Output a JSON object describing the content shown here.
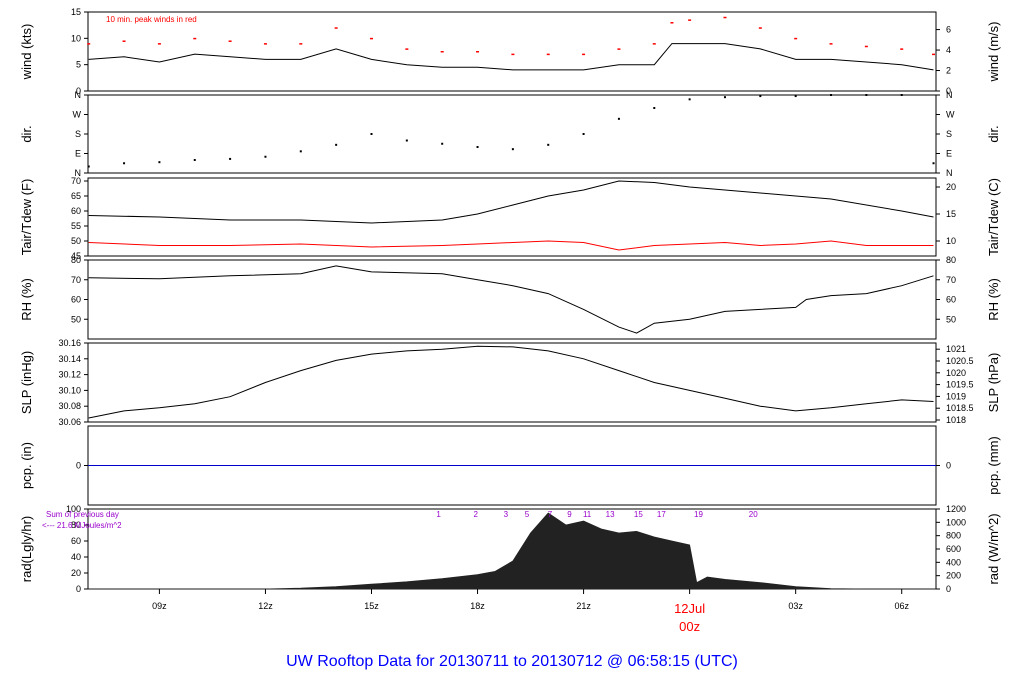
{
  "colors": {
    "line": "#000000",
    "red": "#ff0000",
    "blue": "#0000cc",
    "purple": "#9900cc",
    "title": "#0000ff"
  },
  "title": "UW Rooftop Data for 20130711  to  20130712 @ 06:58:15  (UTC)",
  "chart_data": {
    "type": "line",
    "x_axis": {
      "range_hours": [
        6.98,
        30.97
      ],
      "ticks": [
        {
          "label": "09z",
          "hour": 9
        },
        {
          "label": "12z",
          "hour": 12
        },
        {
          "label": "15z",
          "hour": 15
        },
        {
          "label": "18z",
          "hour": 18
        },
        {
          "label": "21z",
          "hour": 21
        },
        {
          "label": "00z",
          "hour": 24,
          "date_label": "12Jul"
        },
        {
          "label": "03z",
          "hour": 27
        },
        {
          "label": "06z",
          "hour": 30
        }
      ]
    },
    "panels": [
      {
        "id": "wind",
        "ylabel_left": "wind (kts)",
        "ylabel_right": "wind (m/s)",
        "ylim": [
          0,
          15
        ],
        "left_ticks": [
          "0",
          "5",
          "10",
          "15"
        ],
        "right_ticks": [
          "0",
          "2",
          "4",
          "6"
        ],
        "annotation": "10 min. peak winds in red",
        "series": [
          {
            "name": "wind speed",
            "color": "#000000",
            "points": [
              [
                7,
                6
              ],
              [
                8,
                6.5
              ],
              [
                9,
                5.5
              ],
              [
                10,
                7
              ],
              [
                11,
                6.5
              ],
              [
                12,
                6
              ],
              [
                13,
                6
              ],
              [
                14,
                8
              ],
              [
                15,
                6
              ],
              [
                16,
                5
              ],
              [
                17,
                4.5
              ],
              [
                18,
                4.5
              ],
              [
                19,
                4
              ],
              [
                20,
                4
              ],
              [
                21,
                4
              ],
              [
                22,
                5
              ],
              [
                23,
                5
              ],
              [
                23.5,
                9
              ],
              [
                24,
                9
              ],
              [
                25,
                9
              ],
              [
                26,
                8
              ],
              [
                27,
                6
              ],
              [
                28,
                6
              ],
              [
                29,
                5.5
              ],
              [
                30,
                5
              ],
              [
                30.9,
                4
              ]
            ]
          },
          {
            "name": "10 min. peak winds",
            "color": "#ff0000",
            "points": [
              [
                7,
                9
              ],
              [
                8,
                9.5
              ],
              [
                9,
                9
              ],
              [
                10,
                10
              ],
              [
                11,
                9.5
              ],
              [
                12,
                9
              ],
              [
                13,
                9
              ],
              [
                14,
                12
              ],
              [
                15,
                10
              ],
              [
                16,
                8
              ],
              [
                17,
                7.5
              ],
              [
                18,
                7.5
              ],
              [
                19,
                7
              ],
              [
                20,
                7
              ],
              [
                21,
                7
              ],
              [
                22,
                8
              ],
              [
                23,
                9
              ],
              [
                23.5,
                13
              ],
              [
                24,
                13.5
              ],
              [
                25,
                14
              ],
              [
                26,
                12
              ],
              [
                27,
                10
              ],
              [
                28,
                9
              ],
              [
                29,
                8.5
              ],
              [
                30,
                8
              ],
              [
                30.9,
                7
              ]
            ]
          }
        ]
      },
      {
        "id": "dir",
        "ylabel_left": "dir.",
        "ylabel_right": "dir.",
        "ylim": [
          0,
          360
        ],
        "left_ticks": [
          "N",
          "E",
          "S",
          "W",
          "N"
        ],
        "right_ticks": [
          "N",
          "E",
          "S",
          "W",
          "N"
        ],
        "series": [
          {
            "name": "wind direction",
            "color": "#000000",
            "points": [
              [
                7,
                30
              ],
              [
                8,
                45
              ],
              [
                9,
                50
              ],
              [
                10,
                60
              ],
              [
                11,
                65
              ],
              [
                12,
                75
              ],
              [
                13,
                100
              ],
              [
                14,
                130
              ],
              [
                15,
                180
              ],
              [
                16,
                150
              ],
              [
                17,
                135
              ],
              [
                18,
                120
              ],
              [
                19,
                110
              ],
              [
                20,
                130
              ],
              [
                21,
                180
              ],
              [
                22,
                250
              ],
              [
                23,
                300
              ],
              [
                24,
                340
              ],
              [
                25,
                350
              ],
              [
                26,
                355
              ],
              [
                27,
                355
              ],
              [
                28,
                360
              ],
              [
                29,
                360
              ],
              [
                30,
                360
              ],
              [
                30.9,
                45
              ]
            ]
          }
        ]
      },
      {
        "id": "temp",
        "ylabel_left": "Tair/Tdew (F)",
        "ylabel_right": "Tair/Tdew (C)",
        "ylim": [
          45,
          71
        ],
        "left_ticks": [
          "45",
          "50",
          "55",
          "60",
          "65",
          "70"
        ],
        "right_ticks": [
          "10",
          "15",
          "20"
        ],
        "series": [
          {
            "name": "Tair",
            "color": "#000000",
            "points": [
              [
                7,
                58.5
              ],
              [
                9,
                58
              ],
              [
                11,
                57
              ],
              [
                13,
                57
              ],
              [
                15,
                56
              ],
              [
                17,
                57
              ],
              [
                18,
                59
              ],
              [
                19,
                62
              ],
              [
                20,
                65
              ],
              [
                21,
                67
              ],
              [
                22,
                70
              ],
              [
                23,
                69.5
              ],
              [
                24,
                68
              ],
              [
                26,
                66
              ],
              [
                28,
                64
              ],
              [
                30,
                60
              ],
              [
                30.9,
                58
              ]
            ]
          },
          {
            "name": "Tdew",
            "color": "#ff0000",
            "points": [
              [
                7,
                49.5
              ],
              [
                9,
                48.5
              ],
              [
                11,
                48.5
              ],
              [
                13,
                49
              ],
              [
                15,
                48
              ],
              [
                17,
                48.5
              ],
              [
                18,
                49
              ],
              [
                19,
                49.5
              ],
              [
                20,
                50
              ],
              [
                21,
                49.5
              ],
              [
                22,
                47
              ],
              [
                23,
                48.5
              ],
              [
                24,
                49
              ],
              [
                25,
                49.5
              ],
              [
                26,
                48.5
              ],
              [
                27,
                49
              ],
              [
                28,
                50
              ],
              [
                29,
                48.5
              ],
              [
                30,
                48.5
              ],
              [
                30.9,
                48.5
              ]
            ]
          }
        ]
      },
      {
        "id": "rh",
        "ylabel_left": "RH (%)",
        "ylabel_right": "RH (%)",
        "ylim": [
          40,
          80
        ],
        "left_ticks": [
          "50",
          "60",
          "70",
          "80"
        ],
        "right_ticks": [
          "50",
          "60",
          "70",
          "80"
        ],
        "series": [
          {
            "name": "RH",
            "color": "#000000",
            "points": [
              [
                7,
                71
              ],
              [
                9,
                70.5
              ],
              [
                11,
                72
              ],
              [
                13,
                73
              ],
              [
                14,
                77
              ],
              [
                15,
                74
              ],
              [
                17,
                73
              ],
              [
                18,
                70
              ],
              [
                19,
                67
              ],
              [
                20,
                63
              ],
              [
                21,
                55
              ],
              [
                22,
                46
              ],
              [
                22.5,
                43
              ],
              [
                23,
                48
              ],
              [
                24,
                50
              ],
              [
                25,
                54
              ],
              [
                26,
                55
              ],
              [
                27,
                56
              ],
              [
                27.3,
                60
              ],
              [
                28,
                62
              ],
              [
                29,
                63
              ],
              [
                30,
                67
              ],
              [
                30.9,
                72
              ]
            ]
          }
        ]
      },
      {
        "id": "slp",
        "ylabel_left": "SLP (inHg)",
        "ylabel_right": "SLP (hPa)",
        "ylim": [
          30.06,
          30.16
        ],
        "left_ticks": [
          "30.06",
          "30.08",
          "30.10",
          "30.12",
          "30.14",
          "30.16"
        ],
        "right_ticks": [
          "1018",
          "1018.5",
          "1019",
          "1019.5",
          "1020",
          "1020.5",
          "1021"
        ],
        "series": [
          {
            "name": "SLP",
            "color": "#000000",
            "points": [
              [
                7,
                30.065
              ],
              [
                8,
                30.074
              ],
              [
                9,
                30.078
              ],
              [
                10,
                30.083
              ],
              [
                11,
                30.092
              ],
              [
                12,
                30.11
              ],
              [
                13,
                30.125
              ],
              [
                14,
                30.138
              ],
              [
                15,
                30.146
              ],
              [
                16,
                30.15
              ],
              [
                17,
                30.152
              ],
              [
                18,
                30.156
              ],
              [
                19,
                30.155
              ],
              [
                20,
                30.15
              ],
              [
                21,
                30.14
              ],
              [
                22,
                30.125
              ],
              [
                23,
                30.11
              ],
              [
                24,
                30.1
              ],
              [
                25,
                30.09
              ],
              [
                26,
                30.08
              ],
              [
                27,
                30.074
              ],
              [
                28,
                30.078
              ],
              [
                29,
                30.083
              ],
              [
                30,
                30.088
              ],
              [
                30.9,
                30.086
              ]
            ]
          }
        ]
      },
      {
        "id": "pcp",
        "ylabel_left": "pcp. (in)",
        "ylabel_right": "pcp. (mm)",
        "ylim": [
          -0.5,
          0.5
        ],
        "left_ticks": [
          "0"
        ],
        "right_ticks": [
          "0"
        ],
        "series": [
          {
            "name": "precipitation",
            "color": "#0000cc",
            "points": [
              [
                6.98,
                0
              ],
              [
                30.97,
                0
              ]
            ]
          }
        ]
      },
      {
        "id": "rad",
        "ylabel_left": "rad(Lgly/hr)",
        "ylabel_right": "rad (W/m^2)",
        "ylim": [
          0,
          100
        ],
        "left_ticks": [
          "0",
          "20",
          "40",
          "60",
          "80",
          "100"
        ],
        "right_ticks": [
          "0",
          "200",
          "400",
          "600",
          "800",
          "1000",
          "1200"
        ],
        "sum_note_1": "Sum of previous day",
        "sum_note_2": "<--- 21.6 MJoules/m^2",
        "hour_markers": [
          "1",
          "2",
          "3",
          "5",
          "7",
          "9",
          "11",
          "13",
          "15",
          "17",
          "19",
          "20"
        ],
        "series": [
          {
            "name": "solar radiation",
            "color": "#222222",
            "points": [
              [
                6.98,
                0
              ],
              [
                12,
                0
              ],
              [
                13,
                1
              ],
              [
                14,
                3
              ],
              [
                15,
                6
              ],
              [
                16,
                9
              ],
              [
                17,
                13
              ],
              [
                18,
                18
              ],
              [
                18.5,
                22
              ],
              [
                19,
                35
              ],
              [
                19.5,
                70
              ],
              [
                20,
                95
              ],
              [
                20.5,
                80
              ],
              [
                21,
                85
              ],
              [
                21.5,
                75
              ],
              [
                22,
                70
              ],
              [
                22.5,
                72
              ],
              [
                23,
                65
              ],
              [
                23.5,
                60
              ],
              [
                24,
                55
              ],
              [
                24.2,
                8
              ],
              [
                24.5,
                15
              ],
              [
                25,
                12
              ],
              [
                26,
                8
              ],
              [
                27,
                3
              ],
              [
                28,
                0.5
              ],
              [
                29,
                0
              ],
              [
                30.97,
                0
              ]
            ]
          }
        ]
      }
    ]
  }
}
